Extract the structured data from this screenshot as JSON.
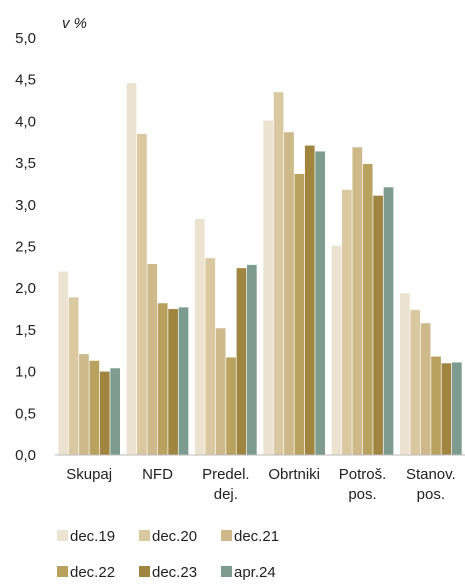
{
  "chart_data": {
    "type": "bar",
    "unit_label": "v %",
    "categories": [
      [
        "Skupaj"
      ],
      [
        "NFD"
      ],
      [
        "Predel.",
        "dej."
      ],
      [
        "Obrtniki"
      ],
      [
        "Potroš.",
        "pos."
      ],
      [
        "Stanov.",
        "pos."
      ]
    ],
    "ylim": [
      0,
      5
    ],
    "yticks": [
      "0,0",
      "0,5",
      "1,0",
      "1,5",
      "2,0",
      "2,5",
      "3,0",
      "3,5",
      "4,0",
      "4,5",
      "5,0"
    ],
    "grid": false,
    "legend_position": "bottom",
    "series": [
      {
        "name": "dec.19",
        "color": "#ebe3cf",
        "values": [
          2.2,
          4.46,
          2.83,
          4.01,
          2.51,
          1.94
        ]
      },
      {
        "name": "dec.20",
        "color": "#d9c8a0",
        "values": [
          1.89,
          3.85,
          2.36,
          4.35,
          3.18,
          1.74
        ]
      },
      {
        "name": "dec.21",
        "color": "#cdb989",
        "values": [
          1.21,
          2.29,
          1.52,
          3.87,
          3.69,
          1.58
        ]
      },
      {
        "name": "dec.22",
        "color": "#b9a260",
        "values": [
          1.13,
          1.82,
          1.17,
          3.37,
          3.49,
          1.18
        ]
      },
      {
        "name": "dec.23",
        "color": "#a08540",
        "values": [
          1.0,
          1.75,
          2.24,
          3.71,
          3.11,
          1.1
        ]
      },
      {
        "name": "apr.24",
        "color": "#7d9c8f",
        "values": [
          1.04,
          1.77,
          2.28,
          3.64,
          3.21,
          1.11
        ]
      }
    ]
  }
}
